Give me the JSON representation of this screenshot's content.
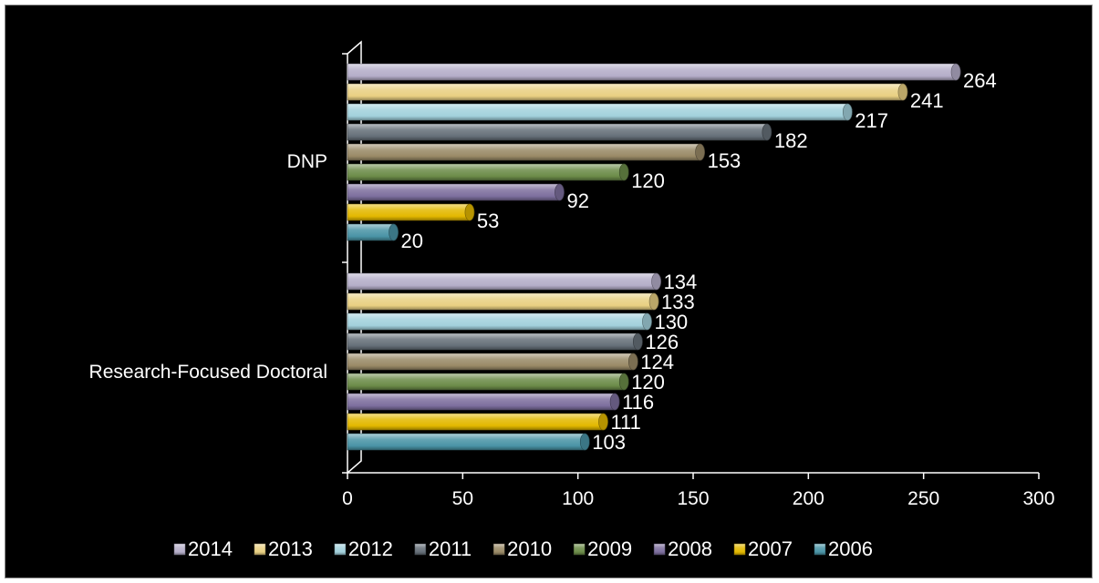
{
  "chart_data": {
    "type": "bar",
    "orientation": "horizontal",
    "style": "3d-cylinder",
    "categories": [
      "DNP",
      "Research-Focused Doctoral"
    ],
    "series": [
      {
        "name": "2014",
        "color": "#b5aec9",
        "values": [
          264,
          134
        ]
      },
      {
        "name": "2013",
        "color": "#e9d082",
        "values": [
          241,
          133
        ]
      },
      {
        "name": "2012",
        "color": "#a2d1dc",
        "values": [
          217,
          130
        ]
      },
      {
        "name": "2011",
        "color": "#667079",
        "values": [
          182,
          126
        ]
      },
      {
        "name": "2010",
        "color": "#9a8a67",
        "values": [
          153,
          124
        ]
      },
      {
        "name": "2009",
        "color": "#6c8c49",
        "values": [
          120,
          120
        ]
      },
      {
        "name": "2008",
        "color": "#7d6f9e",
        "values": [
          92,
          116
        ]
      },
      {
        "name": "2007",
        "color": "#e3b800",
        "values": [
          53,
          111
        ]
      },
      {
        "name": "2006",
        "color": "#4a94a6",
        "values": [
          20,
          103
        ]
      }
    ],
    "xticks": [
      "0",
      "50",
      "100",
      "150",
      "200",
      "250",
      "300"
    ],
    "xlim": [
      0,
      300
    ],
    "legend": "bottom",
    "background": "#000000",
    "text_color": "#ffffff"
  }
}
